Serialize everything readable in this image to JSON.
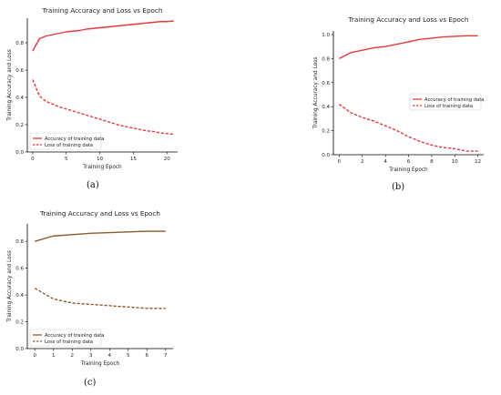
{
  "chart_data": [
    {
      "id": "a",
      "type": "line",
      "title": "Training Accuracy and Loss vs Epoch",
      "xlabel": "Training Epoch",
      "ylabel": "Training Accuracy and Loss",
      "caption": "(a)",
      "xlim": [
        -0.8,
        21.6
      ],
      "ylim": [
        0,
        0.98
      ],
      "xticks": [
        0,
        5,
        10,
        15,
        20
      ],
      "yticks": [
        0.0,
        0.2,
        0.4,
        0.6,
        0.8
      ],
      "ytick_labels": [
        "0.0",
        "0.2",
        "0.4",
        "0.6",
        "0.8"
      ],
      "legend_position": "lower-left",
      "series": [
        {
          "name": "Accuracy of training data",
          "color": "#e8383b",
          "dash": "solid",
          "x": [
            0,
            1,
            2,
            3,
            4,
            5,
            6,
            7,
            8,
            9,
            10,
            11,
            12,
            13,
            14,
            15,
            16,
            17,
            18,
            19,
            20,
            21
          ],
          "y": [
            0.74,
            0.83,
            0.85,
            0.86,
            0.87,
            0.88,
            0.885,
            0.89,
            0.9,
            0.905,
            0.91,
            0.915,
            0.92,
            0.925,
            0.93,
            0.935,
            0.94,
            0.945,
            0.95,
            0.955,
            0.955,
            0.96
          ]
        },
        {
          "name": "Loss of training data",
          "color": "#e8383b",
          "dash": "dashed",
          "x": [
            0,
            1,
            2,
            3,
            4,
            5,
            6,
            7,
            8,
            9,
            10,
            11,
            12,
            13,
            14,
            15,
            16,
            17,
            18,
            19,
            20,
            21
          ],
          "y": [
            0.53,
            0.41,
            0.37,
            0.35,
            0.33,
            0.315,
            0.3,
            0.285,
            0.27,
            0.255,
            0.24,
            0.225,
            0.21,
            0.195,
            0.185,
            0.175,
            0.165,
            0.155,
            0.15,
            0.14,
            0.135,
            0.13
          ]
        }
      ]
    },
    {
      "id": "b",
      "type": "line",
      "title": "Training Accuracy and Loss vs Epoch",
      "xlabel": "Training Epoch",
      "ylabel": "Training Accuracy and Loss",
      "caption": "(b)",
      "xlim": [
        -0.5,
        12.5
      ],
      "ylim": [
        0,
        1.03
      ],
      "xticks": [
        0,
        2,
        4,
        6,
        8,
        10,
        12
      ],
      "yticks": [
        0.0,
        0.2,
        0.4,
        0.6,
        0.8,
        1.0
      ],
      "ytick_labels": [
        "0.0",
        "0.2",
        "0.4",
        "0.6",
        "0.8",
        "1.0"
      ],
      "legend_position": "center-right",
      "series": [
        {
          "name": "Accuracy of training data",
          "color": "#e8383b",
          "dash": "solid",
          "x": [
            0,
            1,
            2,
            3,
            4,
            5,
            6,
            7,
            8,
            9,
            10,
            11,
            12
          ],
          "y": [
            0.8,
            0.85,
            0.87,
            0.89,
            0.9,
            0.92,
            0.94,
            0.96,
            0.97,
            0.98,
            0.985,
            0.99,
            0.99
          ]
        },
        {
          "name": "Loss of training data",
          "color": "#e8383b",
          "dash": "dashed",
          "x": [
            0,
            1,
            2,
            3,
            4,
            5,
            6,
            7,
            8,
            9,
            10,
            11,
            12
          ],
          "y": [
            0.42,
            0.35,
            0.31,
            0.28,
            0.24,
            0.2,
            0.15,
            0.11,
            0.08,
            0.06,
            0.05,
            0.03,
            0.03
          ]
        }
      ]
    },
    {
      "id": "c",
      "type": "line",
      "title": "Training Accuracy and Loss vs Epoch",
      "xlabel": "Training Epoch",
      "ylabel": "Training Accuracy and Loss",
      "caption": "(c)",
      "xlim": [
        -0.4,
        7.4
      ],
      "ylim": [
        0,
        0.93
      ],
      "xticks": [
        0,
        1,
        2,
        3,
        4,
        5,
        6,
        7
      ],
      "yticks": [
        0.0,
        0.2,
        0.4,
        0.6,
        0.8
      ],
      "ytick_labels": [
        "0.0",
        "0.2",
        "0.4",
        "0.6",
        "0.8"
      ],
      "legend_position": "lower-left",
      "series": [
        {
          "name": "Accuracy of training data",
          "color": "#8b5a2b",
          "dash": "solid",
          "x": [
            0,
            1,
            2,
            3,
            4,
            5,
            6,
            7
          ],
          "y": [
            0.8,
            0.84,
            0.85,
            0.86,
            0.865,
            0.87,
            0.875,
            0.875
          ]
        },
        {
          "name": "Loss of training data",
          "color": "#8b5a2b",
          "dash": "dashed",
          "x": [
            0,
            1,
            2,
            3,
            4,
            5,
            6,
            7
          ],
          "y": [
            0.45,
            0.37,
            0.34,
            0.33,
            0.32,
            0.31,
            0.3,
            0.3
          ]
        }
      ]
    }
  ]
}
